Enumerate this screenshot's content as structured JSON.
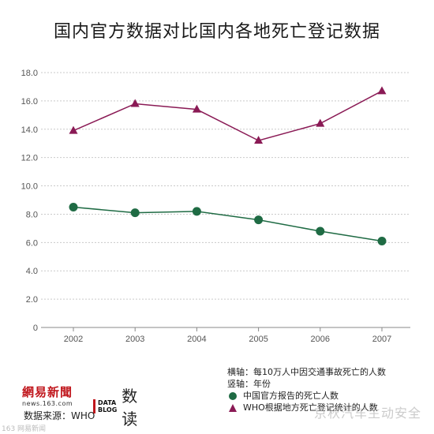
{
  "chart_data": {
    "type": "line",
    "title": "国内官方数据对比国内各地死亡登记数据",
    "x": [
      "2002",
      "2003",
      "2004",
      "2005",
      "2006",
      "2007"
    ],
    "y_ticks": [
      "0",
      "2.0",
      "4.0",
      "6.0",
      "8.0",
      "10.0",
      "12.0",
      "14.0",
      "16.0",
      "18.0"
    ],
    "ylim": [
      0,
      18
    ],
    "grid": true,
    "series": [
      {
        "name": "中国官方报告的死亡人数",
        "values": [
          8.5,
          8.1,
          8.2,
          7.6,
          6.8,
          6.1
        ],
        "color": "#1f6b44",
        "marker": "circle"
      },
      {
        "name": "WHO根据地方死亡登记统计的人数",
        "values": [
          13.9,
          15.8,
          15.4,
          13.2,
          14.4,
          16.7
        ],
        "color": "#8a1a55",
        "marker": "triangle"
      }
    ],
    "legend": {
      "x_axis_note": "横轴：每10万人中因交通事故死亡的人数",
      "y_axis_note": "竖轴：年份",
      "placement": "bottom-right"
    }
  },
  "branding": {
    "netease": "網易新聞",
    "netease_url": "news.163.com",
    "datablog": "DATA BLOG",
    "datablog_cn": "数读",
    "source": "数据来源：WHO",
    "watermark_left": "163 网易新闻",
    "watermark_right": "京秋汽车主动安全"
  }
}
